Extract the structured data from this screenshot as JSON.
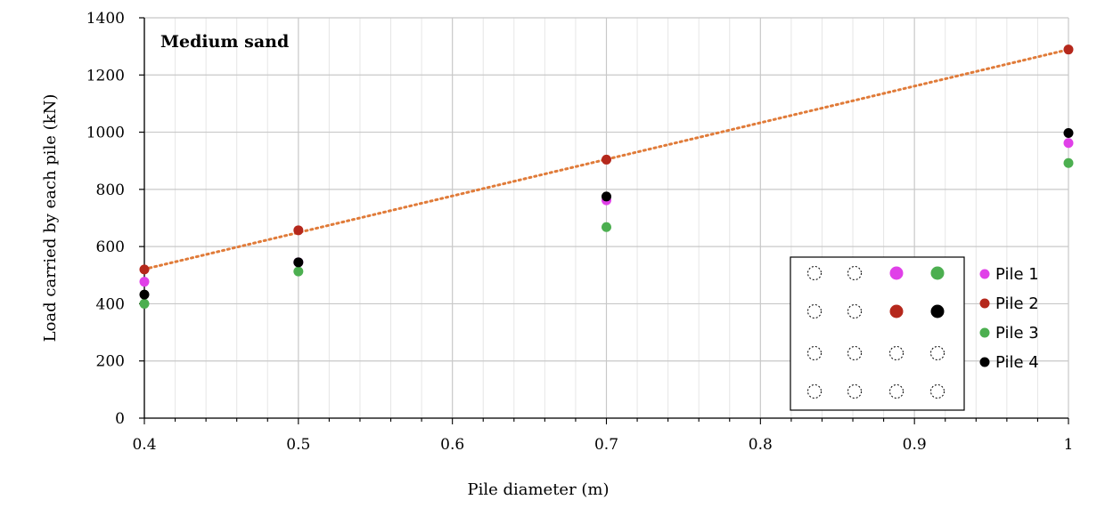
{
  "chart_data": {
    "type": "scatter",
    "annotation": "Medium sand",
    "xlabel": "Pile diameter (m)",
    "ylabel": "Load carried by each pile (kN)",
    "xlim": [
      0.4,
      1.0
    ],
    "ylim": [
      0,
      1400
    ],
    "x_ticks": [
      "0.4",
      "0.5",
      "0.6",
      "0.7",
      "0.8",
      "0.9",
      "1"
    ],
    "y_ticks": [
      "0",
      "200",
      "400",
      "600",
      "800",
      "1000",
      "1200",
      "1400"
    ],
    "grid": true,
    "legend_position": "right",
    "series": [
      {
        "name": "Pile 1",
        "color": "#e040e8",
        "x": [
          0.4,
          0.5,
          0.7,
          1.0
        ],
        "y": [
          477,
          545,
          762,
          962
        ]
      },
      {
        "name": "Pile 2",
        "color": "#b5281c",
        "x": [
          0.4,
          0.5,
          0.7,
          1.0
        ],
        "y": [
          520,
          657,
          904,
          1289
        ]
      },
      {
        "name": "Pile 3",
        "color": "#4caf50",
        "x": [
          0.4,
          0.5,
          0.7,
          1.0
        ],
        "y": [
          400,
          513,
          668,
          892
        ]
      },
      {
        "name": "Pile 4",
        "color": "#000000",
        "x": [
          0.4,
          0.5,
          0.7,
          1.0
        ],
        "y": [
          432,
          545,
          775,
          997
        ]
      }
    ],
    "trendline": {
      "series": "Pile 2",
      "style": "dotted",
      "color": "#e07b39",
      "from": [
        0.4,
        521
      ],
      "to": [
        1.0,
        1289
      ]
    },
    "inset": {
      "description": "4x4 pile group layout",
      "rows": 4,
      "cols": 4,
      "highlighted": [
        {
          "row": 0,
          "col": 2,
          "pile": "Pile 1"
        },
        {
          "row": 0,
          "col": 3,
          "pile": "Pile 3"
        },
        {
          "row": 1,
          "col": 2,
          "pile": "Pile 2"
        },
        {
          "row": 1,
          "col": 3,
          "pile": "Pile 4"
        }
      ]
    }
  }
}
